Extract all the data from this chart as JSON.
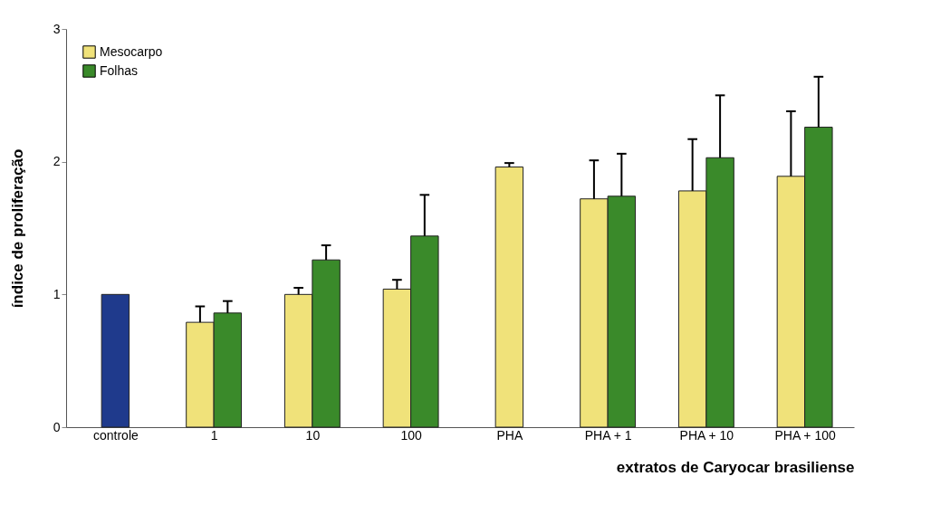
{
  "chart_data": {
    "type": "bar",
    "xlabel": "extratos de Caryocar brasiliense",
    "ylabel": "índice de proliferação",
    "categories": [
      "controle",
      "1",
      "10",
      "100",
      "PHA",
      "PHA + 1",
      "PHA + 10",
      "PHA + 100"
    ],
    "series": [
      {
        "color": "#1f3a8c",
        "values": [
          1.0,
          null,
          null,
          null,
          null,
          null,
          null,
          null
        ]
      },
      {
        "name": "Mesocarpo",
        "color": "#f0e27a",
        "values": [
          null,
          0.79,
          1.0,
          1.04,
          1.96,
          1.72,
          1.78,
          1.89
        ],
        "errors": [
          null,
          [
            0.79,
            0.91
          ],
          [
            1.0,
            1.05
          ],
          [
            1.04,
            1.11
          ],
          [
            1.96,
            1.99
          ],
          [
            1.72,
            2.01
          ],
          [
            1.78,
            2.17
          ],
          [
            1.89,
            2.38
          ]
        ]
      },
      {
        "name": "Folhas",
        "color": "#3a8a2a",
        "values": [
          null,
          0.86,
          1.26,
          1.44,
          null,
          1.74,
          2.03,
          2.26
        ],
        "errors": [
          null,
          [
            0.86,
            0.95
          ],
          [
            1.26,
            1.37
          ],
          [
            1.44,
            1.75
          ],
          null,
          [
            1.74,
            2.06
          ],
          [
            2.03,
            2.5
          ],
          [
            2.26,
            2.64
          ]
        ]
      }
    ],
    "ylim": [
      0,
      3
    ],
    "yticks": [
      0,
      1,
      2,
      3
    ],
    "grid": false,
    "legend": "top left"
  }
}
